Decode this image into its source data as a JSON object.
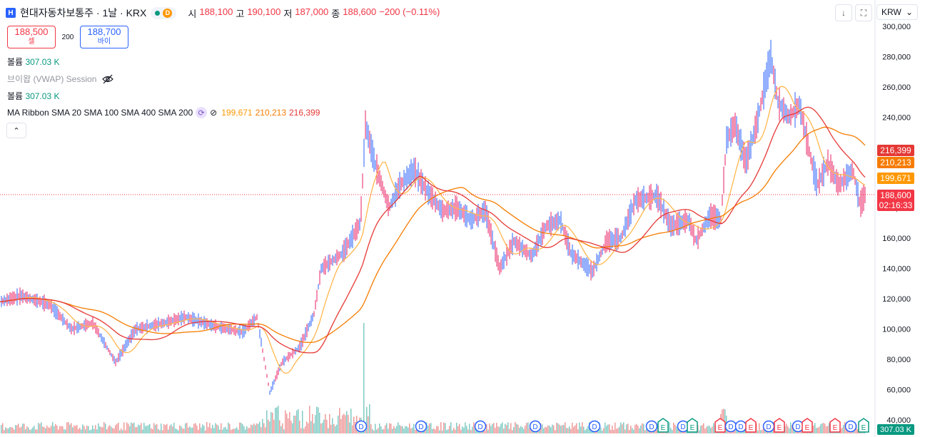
{
  "header": {
    "exchange_badge": "H",
    "title": "현대자동차보통주 · 1날 · KRX",
    "delay_badge": "D",
    "ohlc": [
      {
        "label": "시",
        "value": "188,100"
      },
      {
        "label": "고",
        "value": "190,100"
      },
      {
        "label": "저",
        "value": "187,000"
      },
      {
        "label": "종",
        "value": "188,600"
      }
    ],
    "change": "−200 (−0.11%)"
  },
  "bidask": {
    "sell_price": "188,500",
    "sell_label": "셀",
    "spread": "200",
    "buy_price": "188,700",
    "buy_label": "바이"
  },
  "legends": {
    "volume_label": "볼륨",
    "volume_value": "307.03 K",
    "vwap_label": "브이왑 (VWAP) Session",
    "volume2_label": "볼륨",
    "volume2_value": "307.03 K",
    "ma_label": "MA Ribbon SMA 20 SMA 100 SMA 400 SMA 200",
    "ma_values": [
      "199,671",
      "210,213",
      "216,399"
    ]
  },
  "toolbar": {
    "currency": "KRW",
    "icons": [
      "download-icon",
      "fullscreen-icon",
      "chevron-down-icon"
    ]
  },
  "axis": {
    "ticks": [
      "300,000",
      "280,000",
      "260,000",
      "240,000",
      "220,000",
      "200,000",
      "180,000",
      "160,000",
      "140,000",
      "120,000",
      "100,000",
      "80,000",
      "60,000",
      "40,000"
    ]
  },
  "price_tags": [
    {
      "name": "sma400",
      "text": "216,399",
      "color": "#e53935"
    },
    {
      "name": "sma200",
      "text": "210,213",
      "color": "#f57c00"
    },
    {
      "name": "sma100",
      "text": "199,671",
      "color": "#ff9800"
    },
    {
      "name": "last",
      "text": "188,600",
      "color": "#f23645"
    },
    {
      "name": "countdown",
      "text": "02:16:33",
      "color": "#f23645"
    },
    {
      "name": "volume",
      "text": "307.03 K",
      "color": "#089981"
    }
  ],
  "events": [
    {
      "type": "D",
      "x": 506
    },
    {
      "type": "D",
      "x": 590
    },
    {
      "type": "D",
      "x": 673
    },
    {
      "type": "D",
      "x": 750
    },
    {
      "type": "D",
      "x": 833
    },
    {
      "type": "D",
      "x": 913
    },
    {
      "type": "E",
      "x": 929
    },
    {
      "type": "D",
      "x": 957
    },
    {
      "type": "E",
      "x": 970
    },
    {
      "type": "E",
      "x": 1009
    },
    {
      "type": "D",
      "x": 1024
    },
    {
      "type": "D",
      "x": 1038
    },
    {
      "type": "E",
      "x": 1052
    },
    {
      "type": "D",
      "x": 1077
    },
    {
      "type": "E",
      "x": 1092
    },
    {
      "type": "D",
      "x": 1118
    },
    {
      "type": "E",
      "x": 1131
    },
    {
      "type": "E",
      "x": 1170
    },
    {
      "type": "D",
      "x": 1192
    },
    {
      "type": "E",
      "x": 1210
    }
  ],
  "colors": {
    "up": "#089981",
    "down": "#f23645",
    "candle_up": "#2962ff",
    "candle_down": "#e91e63",
    "sma20": "#ff9800",
    "sma100": "#f57c00",
    "sma400": "#e53935"
  }
}
